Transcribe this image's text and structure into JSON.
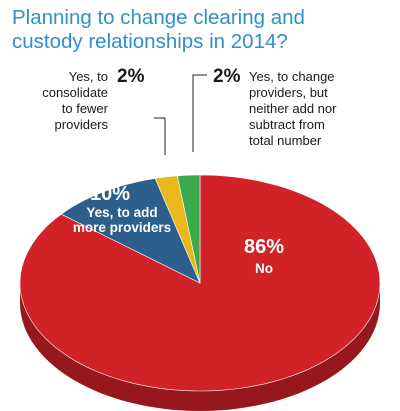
{
  "chart_data": {
    "type": "pie",
    "title_lines": [
      "Planning to change clearing and",
      "custody relationships in 2014?"
    ],
    "slices": [
      {
        "label": "No",
        "value": 86,
        "value_label": "86%",
        "color": "#d12227"
      },
      {
        "label": "Yes, to add more providers",
        "label_lines": [
          "Yes, to add",
          "more providers"
        ],
        "value": 10,
        "value_label": "10%",
        "color": "#2c5f8e"
      },
      {
        "label": "Yes, to consolidate to fewer providers",
        "label_lines": [
          "Yes, to",
          "consolidate",
          "to fewer",
          "providers"
        ],
        "value": 2,
        "value_label": "2%",
        "color": "#e8b81c"
      },
      {
        "label": "Yes, to change providers, but neither add nor subtract from total number",
        "label_lines": [
          "Yes, to change",
          "providers, but",
          "neither add nor",
          "subtract from",
          "total number"
        ],
        "value": 2,
        "value_label": "2%",
        "color": "#3aaa4a"
      }
    ],
    "style": "3d-tilted",
    "legend": "none"
  }
}
